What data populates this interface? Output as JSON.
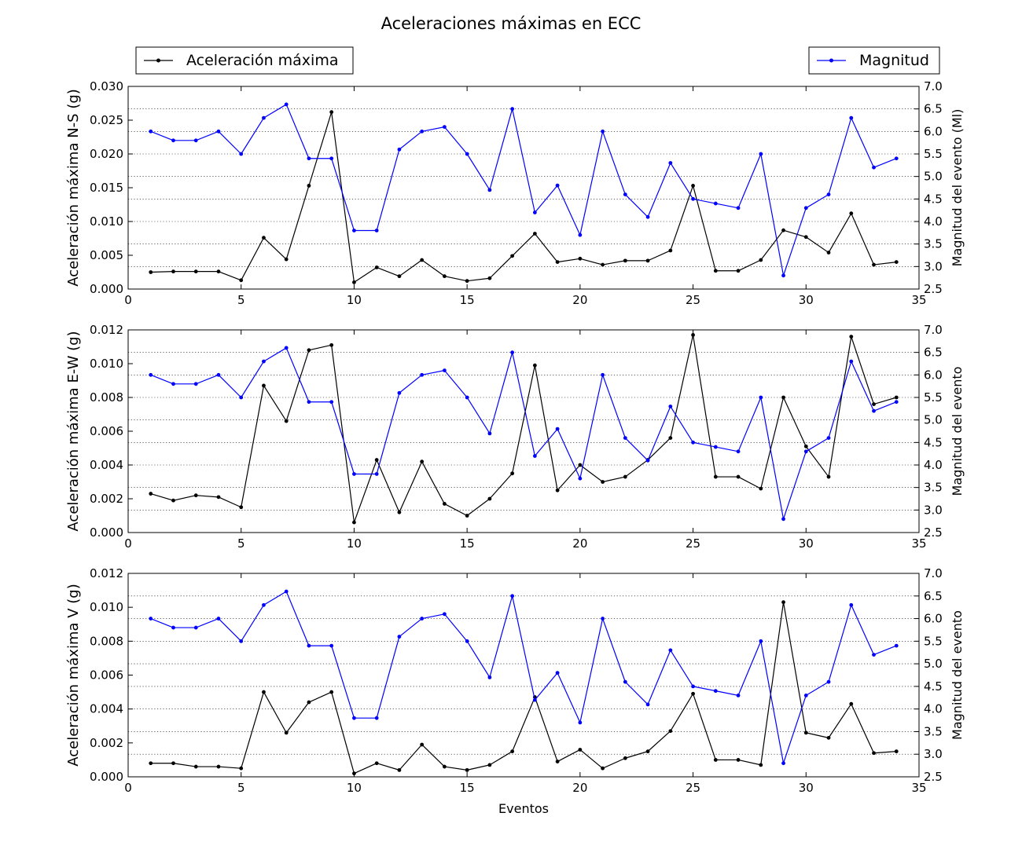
{
  "chart_data": {
    "type": "line",
    "title": "Aceleraciones máximas en ECC",
    "xlabel": "Eventos",
    "legend": {
      "left": {
        "label": "Aceleración máxima",
        "color": "#000000",
        "placement": "top-left"
      },
      "right": {
        "label": "Magnitud",
        "color": "#0000ff",
        "placement": "top-right"
      }
    },
    "x": [
      1,
      2,
      3,
      4,
      5,
      6,
      7,
      8,
      9,
      10,
      11,
      12,
      13,
      14,
      15,
      16,
      17,
      18,
      19,
      20,
      21,
      22,
      23,
      24,
      25,
      26,
      27,
      28,
      29,
      30,
      31,
      32,
      33,
      34
    ],
    "xlim": [
      0,
      35
    ],
    "xticks": [
      "0",
      "5",
      "10",
      "15",
      "20",
      "25",
      "30",
      "35"
    ],
    "magnitude": [
      6.0,
      5.8,
      5.8,
      6.0,
      5.5,
      6.3,
      6.6,
      5.4,
      5.4,
      3.8,
      3.8,
      5.6,
      6.0,
      6.1,
      5.5,
      4.7,
      6.5,
      4.2,
      4.8,
      3.7,
      6.0,
      4.6,
      4.1,
      5.3,
      4.5,
      4.4,
      4.3,
      5.5,
      2.8,
      4.3,
      4.6,
      6.3,
      5.2,
      5.4
    ],
    "panels": [
      {
        "ylabel": "Aceleración máxima N-S (g)",
        "y2label": "Magnitud del evento (Ml)",
        "ylim": [
          0,
          0.03
        ],
        "y2lim": [
          2.5,
          7.0
        ],
        "yticks": [
          "0.000",
          "0.005",
          "0.010",
          "0.015",
          "0.020",
          "0.025",
          "0.030"
        ],
        "y2ticks": [
          "2.5",
          "3.0",
          "3.5",
          "4.0",
          "4.5",
          "5.0",
          "5.5",
          "6.0",
          "6.5",
          "7.0"
        ],
        "acceleration": [
          0.0025,
          0.0026,
          0.0026,
          0.0026,
          0.0013,
          0.0076,
          0.0044,
          0.0153,
          0.0262,
          0.001,
          0.0032,
          0.0019,
          0.0043,
          0.0019,
          0.0012,
          0.0016,
          0.0049,
          0.0082,
          0.004,
          0.0045,
          0.0036,
          0.0042,
          0.0042,
          0.0057,
          0.0153,
          0.0027,
          0.0027,
          0.0043,
          0.0087,
          0.0077,
          0.0054,
          0.0112,
          0.0036,
          0.004
        ]
      },
      {
        "ylabel": "Aceleración máxima E-W (g)",
        "y2label": "Magnitud del evento",
        "ylim": [
          0,
          0.012
        ],
        "y2lim": [
          2.5,
          7.0
        ],
        "yticks": [
          "0.000",
          "0.002",
          "0.004",
          "0.006",
          "0.008",
          "0.010",
          "0.012"
        ],
        "y2ticks": [
          "2.5",
          "3.0",
          "3.5",
          "4.0",
          "4.5",
          "5.0",
          "5.5",
          "6.0",
          "6.5",
          "7.0"
        ],
        "acceleration": [
          0.0023,
          0.0019,
          0.0022,
          0.0021,
          0.0015,
          0.0087,
          0.0066,
          0.0108,
          0.0111,
          0.0006,
          0.0043,
          0.0012,
          0.0042,
          0.0017,
          0.001,
          0.002,
          0.0035,
          0.0099,
          0.0025,
          0.004,
          0.003,
          0.0033,
          0.0043,
          0.0056,
          0.0117,
          0.0033,
          0.0033,
          0.0026,
          0.008,
          0.0051,
          0.0033,
          0.0116,
          0.0076,
          0.008
        ]
      },
      {
        "ylabel": "Aceleración máxima V (g)",
        "y2label": "Magnitud del evento",
        "ylim": [
          0,
          0.012
        ],
        "y2lim": [
          2.5,
          7.0
        ],
        "yticks": [
          "0.000",
          "0.002",
          "0.004",
          "0.006",
          "0.008",
          "0.010",
          "0.012"
        ],
        "y2ticks": [
          "2.5",
          "3.0",
          "3.5",
          "4.0",
          "4.5",
          "5.0",
          "5.5",
          "6.0",
          "6.5",
          "7.0"
        ],
        "acceleration": [
          0.0008,
          0.0008,
          0.0006,
          0.0006,
          0.0005,
          0.005,
          0.0026,
          0.0044,
          0.005,
          0.0002,
          0.0008,
          0.0004,
          0.0019,
          0.0006,
          0.0004,
          0.0007,
          0.0015,
          0.0047,
          0.0009,
          0.0016,
          0.0005,
          0.0011,
          0.0015,
          0.0027,
          0.0049,
          0.001,
          0.001,
          0.0007,
          0.0103,
          0.0026,
          0.0023,
          0.0043,
          0.0014,
          0.0015
        ]
      }
    ],
    "grid": "horizontal-dotted"
  }
}
